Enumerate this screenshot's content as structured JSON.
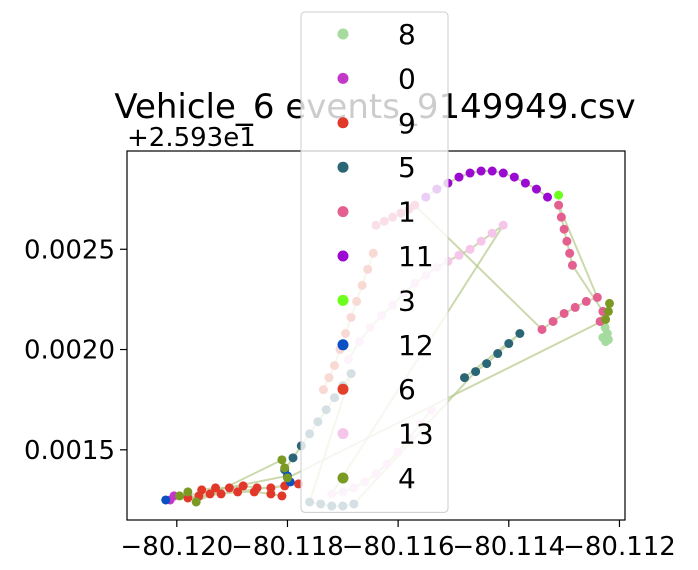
{
  "chart_data": {
    "type": "scatter",
    "title": "Vehicle_6 events_9149949.csv",
    "y_offset_label": "+2.593e1",
    "xlim": [
      -80.1209,
      -80.1119
    ],
    "ylim": [
      0.00115,
      0.00299
    ],
    "x_ticks": [
      {
        "value": -80.12,
        "label": "−80.120"
      },
      {
        "value": -80.118,
        "label": "−80.118"
      },
      {
        "value": -80.116,
        "label": "−80.116"
      },
      {
        "value": -80.114,
        "label": "−80.114"
      },
      {
        "value": -80.112,
        "label": "−80.112"
      }
    ],
    "y_ticks": [
      {
        "value": 0.0015,
        "label": "0.0015"
      },
      {
        "value": 0.002,
        "label": "0.0020"
      },
      {
        "value": 0.0025,
        "label": "0.0025"
      }
    ],
    "grid": false,
    "legend_position": "upper-center",
    "track_color": "#b5c98a",
    "series": [
      {
        "name": "8",
        "color": "#a6dba0",
        "x": [
          -80.1123,
          -80.11225,
          -80.1122,
          -80.11222,
          -80.11226
        ],
        "y": [
          0.00206,
          0.00204,
          0.00205,
          0.00208,
          0.00211
        ]
      },
      {
        "name": "0",
        "color": "#c238c8",
        "x": [
          -80.12012,
          -80.12005
        ],
        "y": [
          0.00125,
          0.00127
        ]
      },
      {
        "name": "9",
        "color": "#e2382a",
        "x": [
          -80.11955,
          -80.1193,
          -80.11905,
          -80.1188,
          -80.11855,
          -80.1183,
          -80.11805,
          -80.1178,
          -80.1198,
          -80.1196,
          -80.1194,
          -80.1192,
          -80.1189,
          -80.1186,
          -80.1183,
          -80.1181
        ],
        "y": [
          0.0013,
          0.00131,
          0.00131,
          0.00132,
          0.00131,
          0.00131,
          0.00132,
          0.00133,
          0.00126,
          0.00127,
          0.00128,
          0.00128,
          0.00129,
          0.00129,
          0.00128,
          0.00127
        ]
      },
      {
        "name": "5",
        "color": "#2b6677",
        "x": [
          -80.11805,
          -80.1179,
          -80.11775,
          -80.1176,
          -80.11745,
          -80.1173,
          -80.11715,
          -80.117,
          -80.11685,
          -80.1176,
          -80.1174,
          -80.1172,
          -80.117,
          -80.1168,
          -80.1146,
          -80.1144,
          -80.1142,
          -80.114,
          -80.1138,
          -80.1148
        ],
        "y": [
          0.0014,
          0.00146,
          0.00152,
          0.00158,
          0.00164,
          0.0017,
          0.00176,
          0.00182,
          0.00188,
          0.00124,
          0.00123,
          0.00122,
          0.00122,
          0.00123,
          0.00189,
          0.00193,
          0.00198,
          0.00203,
          0.00208,
          0.00186
        ]
      },
      {
        "name": "1",
        "color": "#e35f8f",
        "x": [
          -80.1164,
          -80.11625,
          -80.1161,
          -80.11595,
          -80.1158,
          -80.1157,
          -80.1134,
          -80.1132,
          -80.113,
          -80.1128,
          -80.1126,
          -80.1124,
          -80.1131,
          -80.11305,
          -80.113,
          -80.11295,
          -80.1129,
          -80.11285,
          -80.1123,
          -80.11235
        ],
        "y": [
          0.00262,
          0.00264,
          0.00266,
          0.00268,
          0.0027,
          0.00272,
          0.0021,
          0.00214,
          0.00218,
          0.00221,
          0.00224,
          0.00226,
          0.00272,
          0.00266,
          0.0026,
          0.00254,
          0.00248,
          0.00242,
          0.00219,
          0.00214
        ]
      },
      {
        "name": "11",
        "color": "#9b0ad0",
        "x": [
          -80.1155,
          -80.1153,
          -80.1151,
          -80.1149,
          -80.1147,
          -80.1145,
          -80.1143,
          -80.1141,
          -80.1139,
          -80.1137,
          -80.1135,
          -80.1133
        ],
        "y": [
          0.00276,
          0.0028,
          0.00283,
          0.00286,
          0.00288,
          0.00289,
          0.00289,
          0.00288,
          0.00286,
          0.00283,
          0.0028,
          0.00276
        ]
      },
      {
        "name": "3",
        "color": "#6cff1c",
        "x": [
          -80.1131
        ],
        "y": [
          0.00277
        ]
      },
      {
        "name": "12",
        "color": "#0a4fc4",
        "x": [
          -80.1202,
          -80.118,
          -80.11795
        ],
        "y": [
          0.00125,
          0.00137,
          0.00134
        ]
      },
      {
        "name": "6",
        "color": "#e2402a",
        "x": [
          -80.11645,
          -80.11655,
          -80.11665,
          -80.11675,
          -80.11685,
          -80.11695,
          -80.11705,
          -80.11715,
          -80.11725,
          -80.11735
        ],
        "y": [
          0.00248,
          0.0024,
          0.00232,
          0.00224,
          0.00216,
          0.00208,
          0.002,
          0.00192,
          0.00186,
          0.0018
        ]
      },
      {
        "name": "13",
        "color": "#f5c6ea",
        "x": [
          -80.1169,
          -80.1167,
          -80.1165,
          -80.1163,
          -80.1161,
          -80.1159,
          -80.1157,
          -80.1155,
          -80.1153,
          -80.1151,
          -80.1149,
          -80.1147,
          -80.1145,
          -80.1143,
          -80.1141,
          -80.1172,
          -80.117,
          -80.1168,
          -80.1166,
          -80.1164,
          -80.1162,
          -80.116,
          -80.1158,
          -80.1156,
          -80.1154
        ],
        "y": [
          0.00195,
          0.00204,
          0.00211,
          0.00217,
          0.00222,
          0.00228,
          0.00233,
          0.00237,
          0.00241,
          0.00244,
          0.00247,
          0.0025,
          0.00254,
          0.00258,
          0.00262,
          0.00128,
          0.00129,
          0.00131,
          0.00134,
          0.00138,
          0.00143,
          0.00149,
          0.00156,
          0.00163,
          0.0017
        ]
      },
      {
        "name": "4",
        "color": "#7a9a24",
        "x": [
          -80.11995,
          -80.1198,
          -80.11965,
          -80.1181,
          -80.11805,
          -80.118,
          -80.11225,
          -80.1122,
          -80.11218
        ],
        "y": [
          0.00127,
          0.00129,
          0.00124,
          0.00145,
          0.00141,
          0.00136,
          0.00215,
          0.00219,
          0.00223
        ]
      }
    ]
  }
}
